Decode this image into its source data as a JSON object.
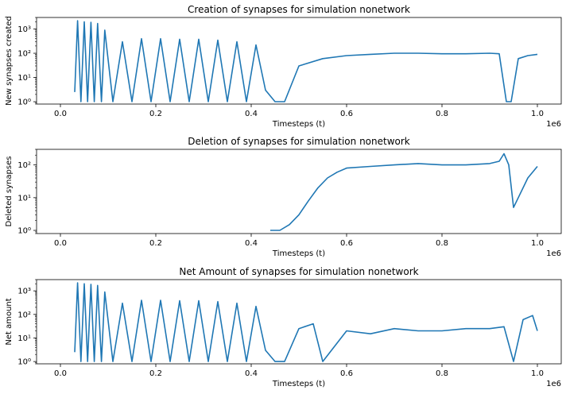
{
  "chart_data": [
    {
      "type": "line",
      "title": "Creation of synapses for simulation nonetwork",
      "xlabel": "Timesteps (t)",
      "ylabel": "New synapses created",
      "x_offset_label": "1e6",
      "xlim": [
        -0.05,
        1.05
      ],
      "ylim": [
        0.8,
        3000
      ],
      "yscale": "log",
      "x_ticks": [
        0.0,
        0.2,
        0.4,
        0.6,
        0.8,
        1.0
      ],
      "x_tick_labels": [
        "0.0",
        "0.2",
        "0.4",
        "0.6",
        "0.8",
        "1.0"
      ],
      "y_ticks": [
        1,
        10,
        100,
        1000
      ],
      "y_tick_labels": [
        "10⁰",
        "10¹",
        "10²",
        "10³"
      ],
      "color": "#1f77b4",
      "series": [
        {
          "x": [
            0.03,
            0.036,
            0.043,
            0.05,
            0.057,
            0.064,
            0.071,
            0.078,
            0.086,
            0.093,
            0.11,
            0.13,
            0.15,
            0.17,
            0.19,
            0.21,
            0.23,
            0.25,
            0.27,
            0.29,
            0.31,
            0.33,
            0.35,
            0.37,
            0.39,
            0.41,
            0.43,
            0.45,
            0.47,
            0.5,
            0.55,
            0.6,
            0.65,
            0.7,
            0.75,
            0.8,
            0.85,
            0.9,
            0.92,
            0.935,
            0.945,
            0.96,
            0.98,
            1.0
          ],
          "y": [
            2.5,
            2200,
            1.0,
            2000,
            1.0,
            1900,
            1.0,
            1700,
            1.0,
            900,
            1.0,
            300,
            1.0,
            400,
            1.0,
            400,
            1.0,
            380,
            1.0,
            380,
            1.0,
            350,
            1.0,
            300,
            1.0,
            220,
            3,
            1.0,
            1.0,
            30,
            60,
            80,
            90,
            100,
            100,
            95,
            95,
            100,
            95,
            1.0,
            1.0,
            60,
            80,
            90
          ]
        }
      ]
    },
    {
      "type": "line",
      "title": "Deletion of synapses for simulation nonetwork",
      "xlabel": "Timesteps (t)",
      "ylabel": "Deleted synapses",
      "x_offset_label": "1e6",
      "xlim": [
        -0.05,
        1.05
      ],
      "ylim": [
        0.8,
        300
      ],
      "yscale": "log",
      "x_ticks": [
        0.0,
        0.2,
        0.4,
        0.6,
        0.8,
        1.0
      ],
      "x_tick_labels": [
        "0.0",
        "0.2",
        "0.4",
        "0.6",
        "0.8",
        "1.0"
      ],
      "y_ticks": [
        1,
        10,
        100
      ],
      "y_tick_labels": [
        "10⁰",
        "10¹",
        "10²"
      ],
      "color": "#1f77b4",
      "series": [
        {
          "x": [
            0.44,
            0.46,
            0.48,
            0.5,
            0.52,
            0.54,
            0.56,
            0.58,
            0.6,
            0.65,
            0.7,
            0.75,
            0.8,
            0.85,
            0.9,
            0.92,
            0.93,
            0.94,
            0.95,
            0.96,
            0.98,
            1.0
          ],
          "y": [
            1,
            1,
            1.5,
            3,
            8,
            20,
            40,
            60,
            80,
            90,
            100,
            110,
            100,
            100,
            110,
            130,
            220,
            100,
            5,
            10,
            40,
            90
          ]
        }
      ]
    },
    {
      "type": "line",
      "title": "Net Amount of synapses for simulation nonetwork",
      "xlabel": "Timesteps (t)",
      "ylabel": "Net amount",
      "x_offset_label": "1e6",
      "xlim": [
        -0.05,
        1.05
      ],
      "ylim": [
        0.8,
        3000
      ],
      "yscale": "log",
      "x_ticks": [
        0.0,
        0.2,
        0.4,
        0.6,
        0.8,
        1.0
      ],
      "x_tick_labels": [
        "0.0",
        "0.2",
        "0.4",
        "0.6",
        "0.8",
        "1.0"
      ],
      "y_ticks": [
        1,
        10,
        100,
        1000
      ],
      "y_tick_labels": [
        "10⁰",
        "10¹",
        "10²",
        "10³"
      ],
      "color": "#1f77b4",
      "series": [
        {
          "x": [
            0.03,
            0.036,
            0.043,
            0.05,
            0.057,
            0.064,
            0.071,
            0.078,
            0.086,
            0.093,
            0.11,
            0.13,
            0.15,
            0.17,
            0.19,
            0.21,
            0.23,
            0.25,
            0.27,
            0.29,
            0.31,
            0.33,
            0.35,
            0.37,
            0.39,
            0.41,
            0.43,
            0.45,
            0.47,
            0.5,
            0.53,
            0.55,
            0.6,
            0.65,
            0.7,
            0.75,
            0.8,
            0.85,
            0.9,
            0.93,
            0.95,
            0.97,
            0.99,
            1.0
          ],
          "y": [
            2.5,
            2200,
            1.0,
            2000,
            1.0,
            1900,
            1.0,
            1700,
            1.0,
            900,
            1.0,
            300,
            1.0,
            400,
            1.0,
            400,
            1.0,
            380,
            1.0,
            380,
            1.0,
            350,
            1.0,
            300,
            1.0,
            220,
            3,
            1.0,
            1.0,
            25,
            40,
            1.0,
            20,
            15,
            25,
            20,
            20,
            25,
            25,
            30,
            1.0,
            60,
            90,
            20
          ]
        }
      ]
    }
  ]
}
